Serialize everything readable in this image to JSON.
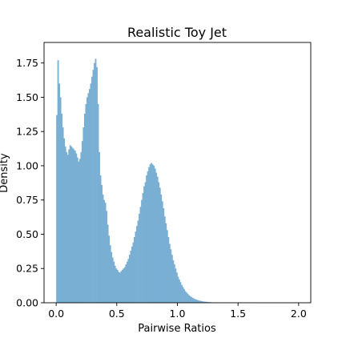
{
  "chart_data": {
    "type": "bar",
    "title": "Realistic Toy Jet",
    "xlabel": "Pairwise Ratios",
    "ylabel": "Density",
    "xlim": [
      -0.1,
      2.1
    ],
    "ylim": [
      0,
      1.9
    ],
    "xticks": [
      0.0,
      0.5,
      1.0,
      1.5,
      2.0
    ],
    "xtick_labels": [
      "0.0",
      "0.5",
      "1.0",
      "1.5",
      "2.0"
    ],
    "yticks": [
      0.0,
      0.25,
      0.5,
      0.75,
      1.0,
      1.25,
      1.5,
      1.75
    ],
    "ytick_labels": [
      "0.00",
      "0.25",
      "0.50",
      "0.75",
      "1.00",
      "1.25",
      "1.50",
      "1.75"
    ],
    "bar_color": "#7aafd4",
    "bin_width": 0.01,
    "bin_start": 0.0,
    "grid": false,
    "values": [
      1.37,
      1.77,
      1.6,
      1.5,
      1.38,
      1.28,
      1.2,
      1.14,
      1.1,
      1.08,
      1.12,
      1.15,
      1.14,
      1.13,
      1.12,
      1.11,
      1.09,
      1.06,
      1.03,
      1.05,
      1.1,
      1.18,
      1.28,
      1.38,
      1.45,
      1.5,
      1.53,
      1.56,
      1.6,
      1.65,
      1.7,
      1.75,
      1.78,
      1.72,
      1.45,
      1.1,
      0.93,
      0.86,
      0.79,
      0.75,
      0.73,
      0.67,
      0.57,
      0.49,
      0.42,
      0.37,
      0.33,
      0.3,
      0.27,
      0.25,
      0.24,
      0.225,
      0.22,
      0.23,
      0.24,
      0.25,
      0.26,
      0.28,
      0.3,
      0.32,
      0.35,
      0.38,
      0.41,
      0.44,
      0.48,
      0.52,
      0.56,
      0.6,
      0.65,
      0.7,
      0.75,
      0.8,
      0.85,
      0.88,
      0.93,
      0.96,
      0.99,
      1.01,
      1.02,
      1.01,
      1.0,
      0.98,
      0.95,
      0.92,
      0.88,
      0.84,
      0.79,
      0.74,
      0.69,
      0.63,
      0.58,
      0.53,
      0.48,
      0.43,
      0.39,
      0.35,
      0.31,
      0.28,
      0.25,
      0.22,
      0.19,
      0.17,
      0.15,
      0.13,
      0.115,
      0.1,
      0.085,
      0.075,
      0.065,
      0.055,
      0.048,
      0.042,
      0.036,
      0.031,
      0.027,
      0.023,
      0.02,
      0.017,
      0.015,
      0.013,
      0.011,
      0.009,
      0.008,
      0.007,
      0.006,
      0.005,
      0.004,
      0.004,
      0.003,
      0.003,
      0.002,
      0.002,
      0.002,
      0.002,
      0.001,
      0.001,
      0.001,
      0.001,
      0.001,
      0.001,
      0.001,
      0.001,
      0.001,
      0.001,
      0.001,
      0.001,
      0.001,
      0.001,
      0.001,
      0.001,
      0.001,
      0.001,
      0.001,
      0.001,
      0.001,
      0.001,
      0.001,
      0.001,
      0.001,
      0.001,
      0.001,
      0.001,
      0.001,
      0.001,
      0.001,
      0.001
    ]
  }
}
